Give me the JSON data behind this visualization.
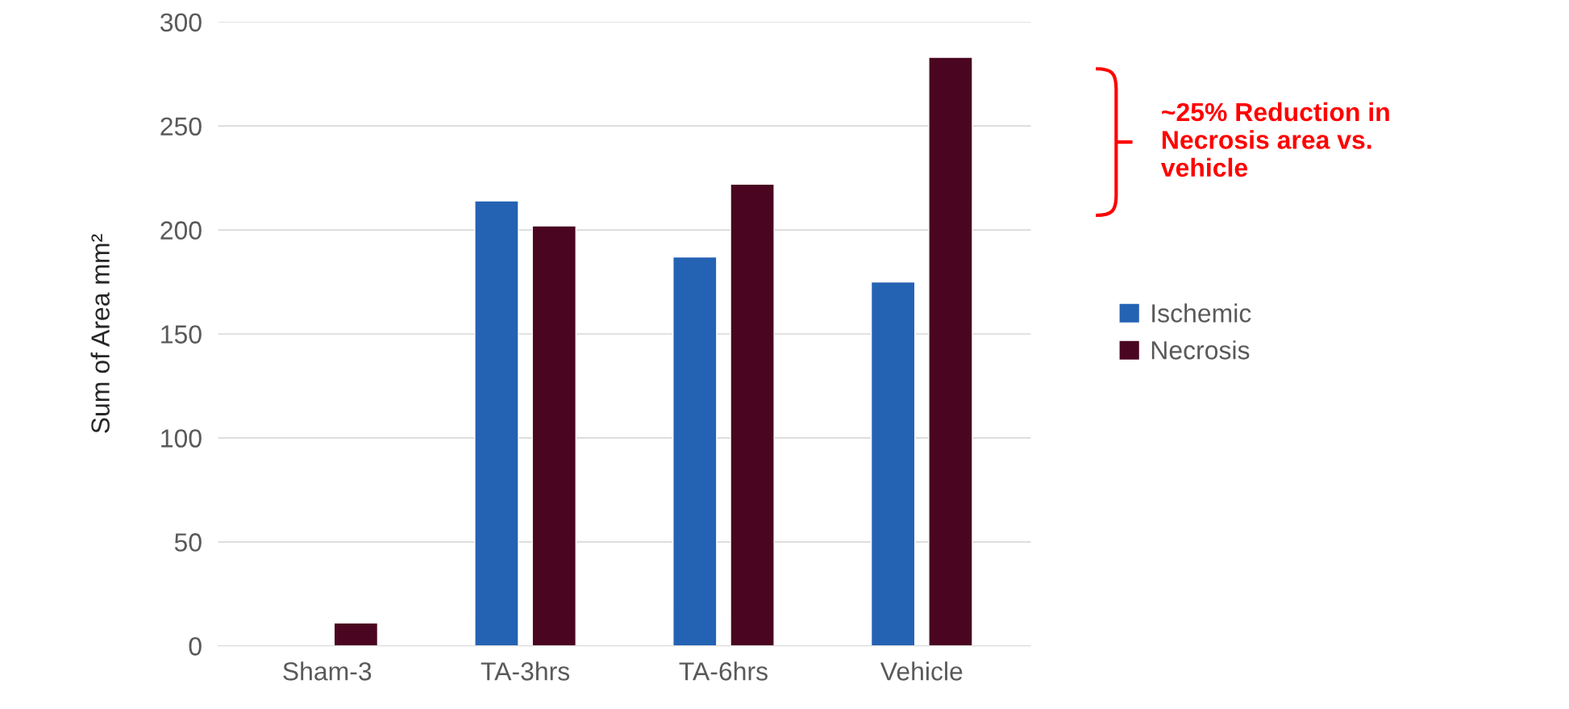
{
  "chart_data": {
    "type": "bar",
    "ylabel": "Sum of Area mm²",
    "categories": [
      "Sham-3",
      "TA-3hrs",
      "TA-6hrs",
      "Vehicle"
    ],
    "series": [
      {
        "name": "Ischemic",
        "color": "#2462b3",
        "values": [
          null,
          214,
          187,
          175
        ]
      },
      {
        "name": "Necrosis",
        "color": "#4a0520",
        "values": [
          11,
          202,
          222,
          283
        ]
      }
    ],
    "ylim": [
      0,
      300
    ],
    "yticks": [
      0,
      50,
      100,
      150,
      200,
      250,
      300
    ],
    "grid": "y",
    "legend": "right",
    "annotations": [
      "~25% Reduction in Necrosis area vs. vehicle"
    ]
  }
}
